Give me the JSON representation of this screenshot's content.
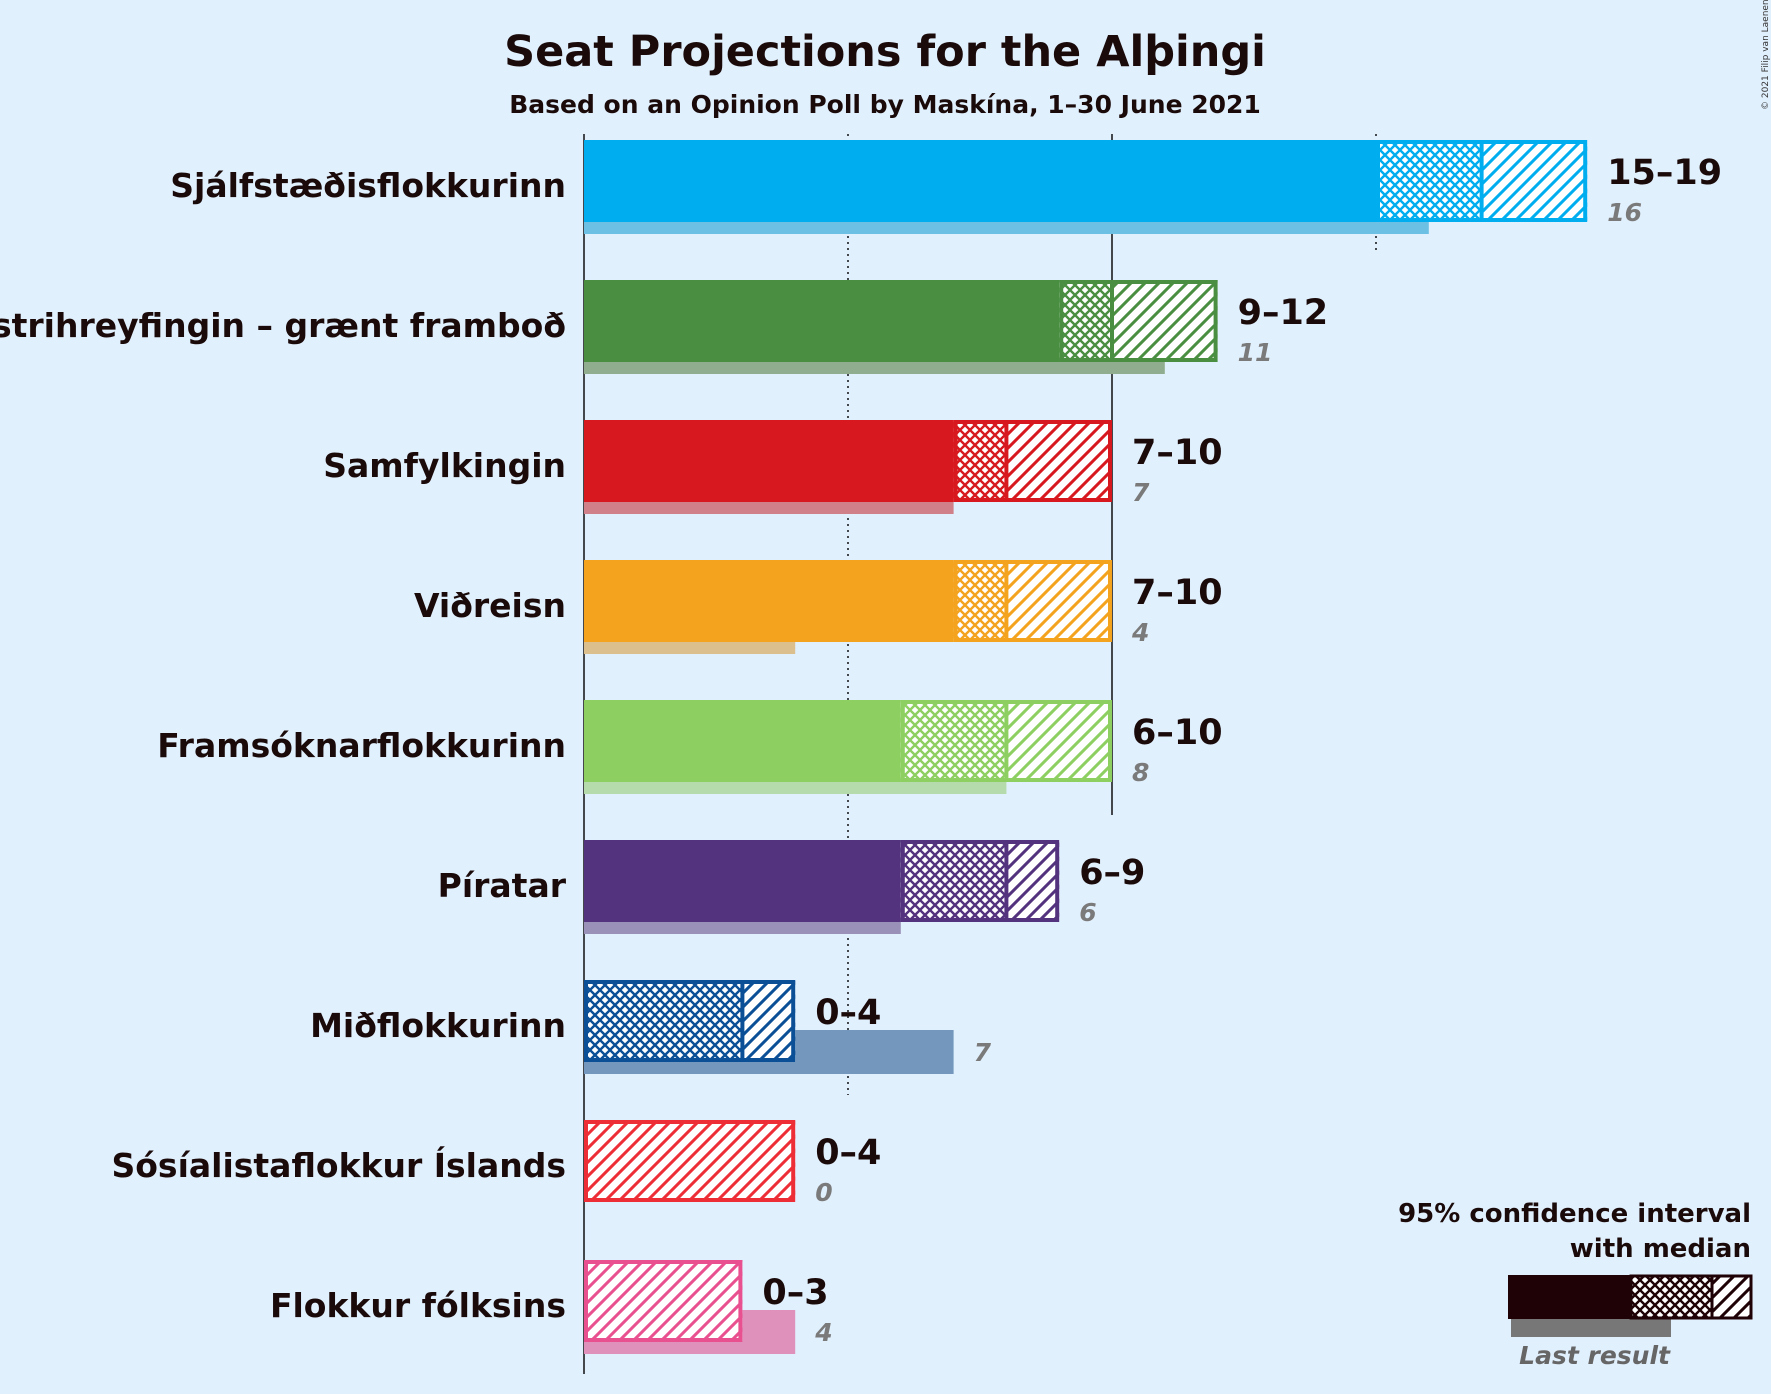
{
  "chart_data": {
    "type": "bar",
    "title": "Seat Projections for the Alþingi",
    "subtitle": "Based on an Opinion Poll by Maskína, 1–30 June 2021",
    "copyright": "© 2021 Filip van Laenen",
    "xlim": [
      0,
      19
    ],
    "gridlines": {
      "dotted": [
        5,
        15
      ],
      "solid": [
        10
      ]
    },
    "legend": {
      "line1": "95% confidence interval",
      "line2": "with median",
      "last_result": "Last result",
      "color": "#1e0206",
      "placement": "bottom-right"
    },
    "parties": [
      {
        "name": "Sjálfstæðisflokkurinn",
        "low": 15,
        "median": 17,
        "high": 19,
        "label": "15–19",
        "last": 16,
        "last_label": "16",
        "color": "#00aeef",
        "last_color": "#6cc0e3"
      },
      {
        "name": "Vinstrihreyfingin – grænt framboð",
        "low": 9,
        "median": 10,
        "high": 12,
        "label": "9–12",
        "last": 11,
        "last_label": "11",
        "color": "#4a8f41",
        "last_color": "#91ad8f"
      },
      {
        "name": "Samfylkingin",
        "low": 7,
        "median": 8,
        "high": 10,
        "label": "7–10",
        "last": 7,
        "last_label": "7",
        "color": "#d7191f",
        "last_color": "#cf8088"
      },
      {
        "name": "Viðreisn",
        "low": 7,
        "median": 8,
        "high": 10,
        "label": "7–10",
        "last": 4,
        "last_label": "4",
        "color": "#f4a31f",
        "last_color": "#dbc08e"
      },
      {
        "name": "Framsóknarflokkurinn",
        "low": 6,
        "median": 8,
        "high": 10,
        "label": "6–10",
        "last": 8,
        "last_label": "8",
        "color": "#8ecf62",
        "last_color": "#b5dbac"
      },
      {
        "name": "Píratar",
        "low": 6,
        "median": 8,
        "high": 9,
        "label": "6–9",
        "last": 6,
        "last_label": "6",
        "color": "#53337e",
        "last_color": "#9a91b8"
      },
      {
        "name": "Miðflokkurinn",
        "low": 0,
        "median": 3,
        "high": 4,
        "label": "0–4",
        "last": 7,
        "last_label": "7",
        "color": "#0b5097",
        "last_color": "#7498bd"
      },
      {
        "name": "Sósíalistaflokkur Íslands",
        "low": 0,
        "median": 0,
        "high": 4,
        "label": "0–4",
        "last": 0,
        "last_label": "0",
        "color": "#ee2e37",
        "last_color": "#e3a4ab"
      },
      {
        "name": "Flokkur fólksins",
        "low": 0,
        "median": 0,
        "high": 3,
        "label": "0–3",
        "last": 4,
        "last_label": "4",
        "color": "#e8508f",
        "last_color": "#df91bc"
      }
    ]
  }
}
